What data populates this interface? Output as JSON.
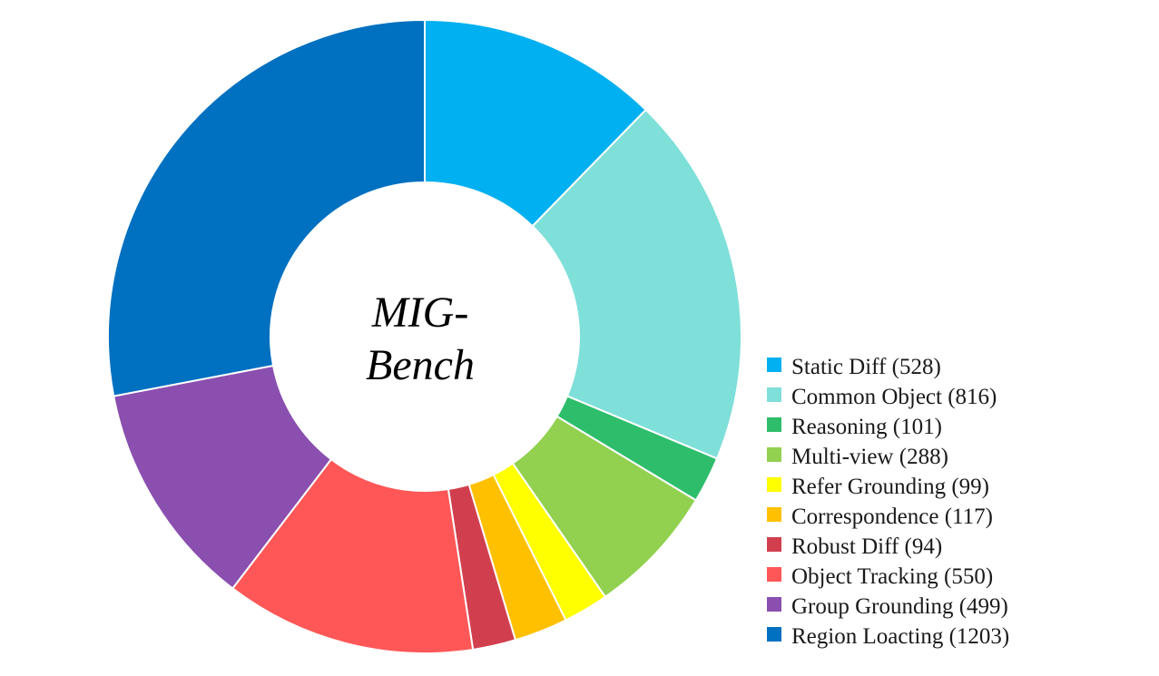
{
  "chart_data": {
    "type": "pie",
    "variant": "donut",
    "center_label": [
      "MIG-",
      "Bench"
    ],
    "legend_position": "right",
    "slices": [
      {
        "label": "Static Diff (528)",
        "value": 528,
        "color": "#00B0F0"
      },
      {
        "label": "Common Object (816)",
        "value": 816,
        "color": "#7FDFD9"
      },
      {
        "label": "Reasoning (101)",
        "value": 101,
        "color": "#2EBD6B"
      },
      {
        "label": "Multi-view (288)",
        "value": 288,
        "color": "#92D050"
      },
      {
        "label": "Refer Grounding (99)",
        "value": 99,
        "color": "#FFFF00"
      },
      {
        "label": "Correspondence (117)",
        "value": 117,
        "color": "#FFC000"
      },
      {
        "label": "Robust Diff (94)",
        "value": 94,
        "color": "#D13F4F"
      },
      {
        "label": "Object Tracking (550)",
        "value": 550,
        "color": "#FF5757"
      },
      {
        "label": "Group Grounding (499)",
        "value": 499,
        "color": "#8A4FAF"
      },
      {
        "label": "Region Loacting (1203)",
        "value": 1203,
        "color": "#0070C0"
      }
    ]
  }
}
